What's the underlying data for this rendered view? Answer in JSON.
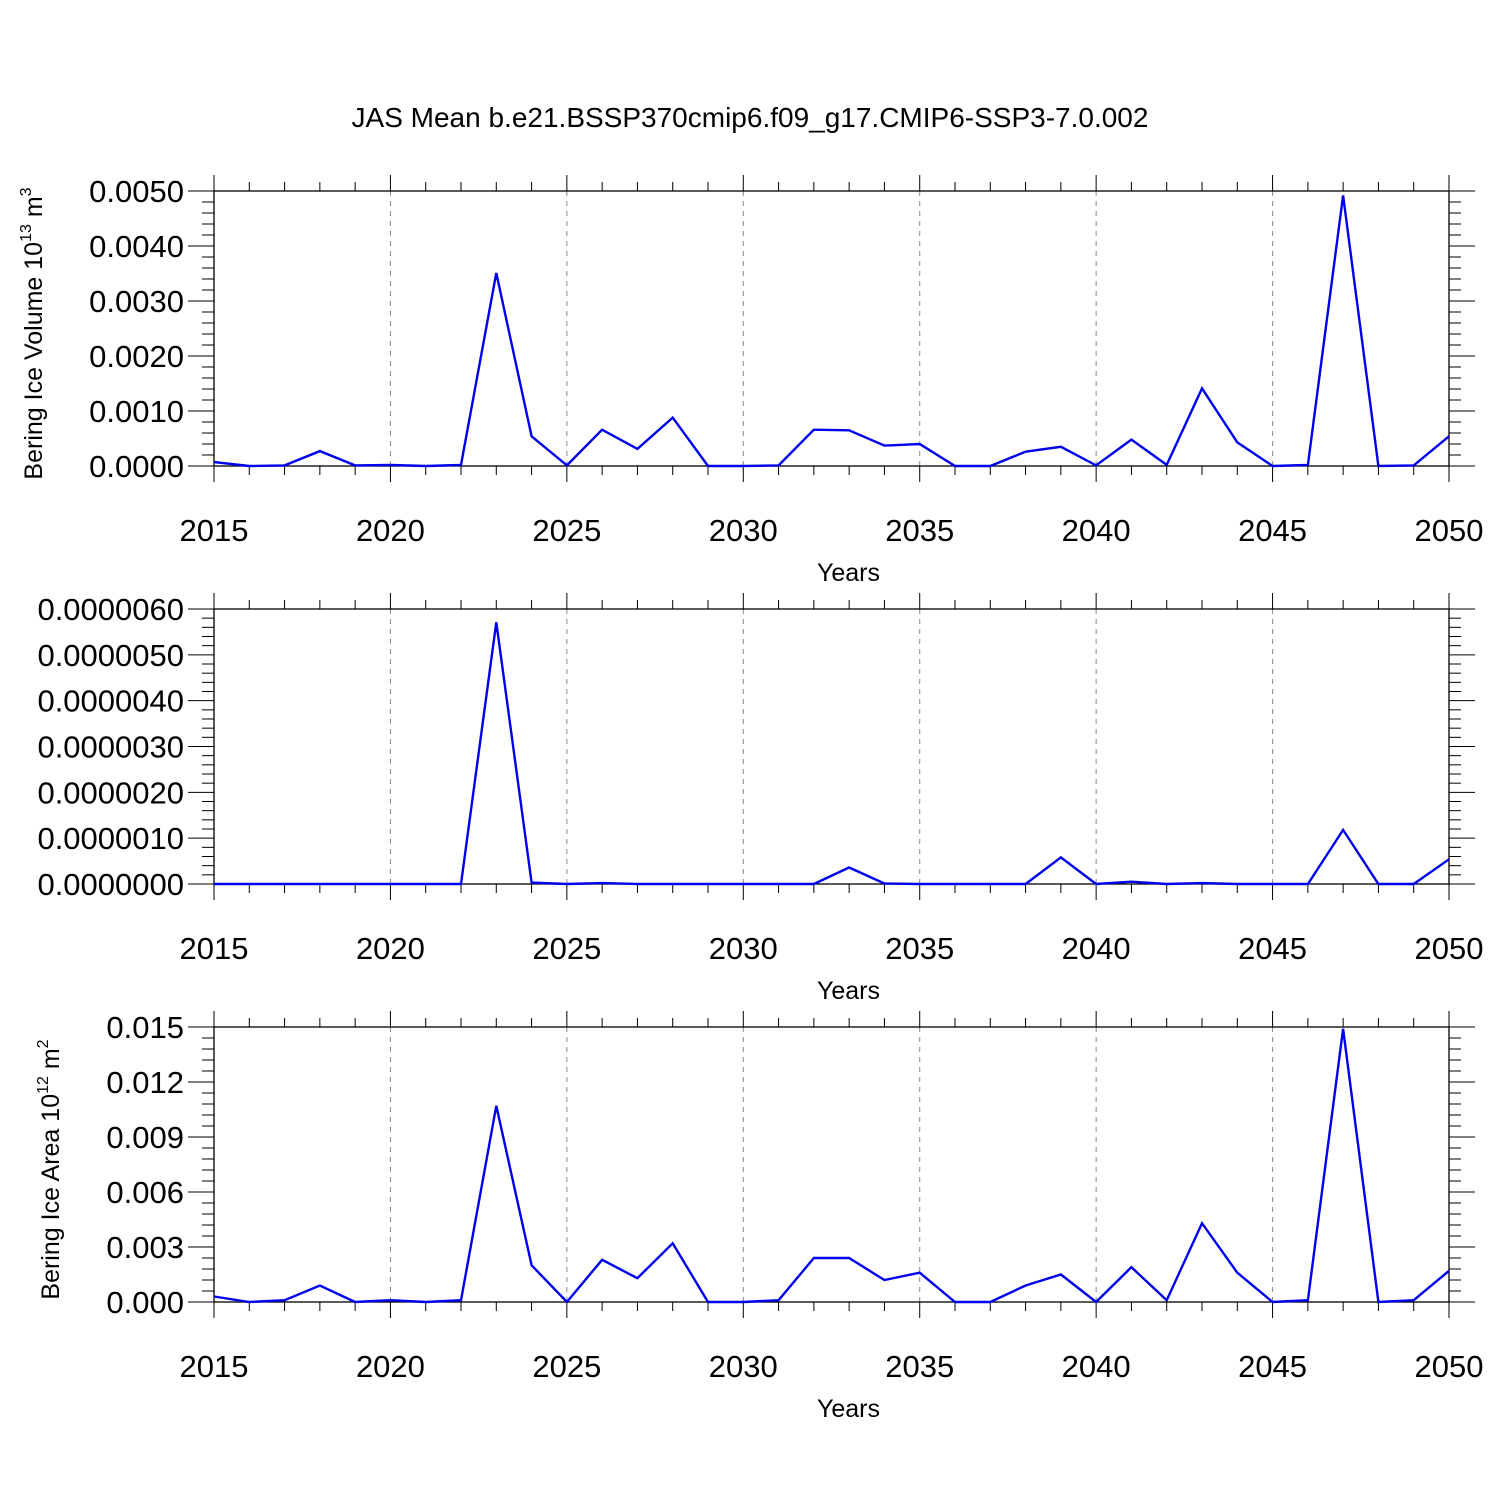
{
  "title": "JAS Mean b.e21.BSSP370cmip6.f09_g17.CMIP6-SSP3-7.0.002",
  "line_color": "#0000ee",
  "chart_data": [
    {
      "type": "line",
      "xlabel": "Years",
      "ylabel": {
        "pre": "Bering Ice Volume 10",
        "exp": "13",
        "post": " m",
        "post_exp": "3"
      },
      "xlim": [
        2015,
        2050
      ],
      "ylim": [
        0,
        0.005
      ],
      "yticks": [
        "0.0000",
        "0.0010",
        "0.0020",
        "0.0030",
        "0.0040",
        "0.0050"
      ],
      "xticks": [
        "2015",
        "2020",
        "2025",
        "2030",
        "2035",
        "2040",
        "2045",
        "2050"
      ],
      "grid": "vertical dashed at major x ticks",
      "series": [
        {
          "x": [
            2015,
            2016,
            2017,
            2018,
            2019,
            2020,
            2021,
            2022,
            2023,
            2024,
            2025,
            2026,
            2027,
            2028,
            2029,
            2030,
            2031,
            2032,
            2033,
            2034,
            2035,
            2036,
            2037,
            2038,
            2039,
            2040,
            2041,
            2042,
            2043,
            2044,
            2045,
            2046,
            2047,
            2048,
            2049,
            2050
          ],
          "values": [
            7e-05,
            0.0,
            1e-05,
            0.00027,
            1e-05,
            2e-05,
            0.0,
            2e-05,
            0.00351,
            0.00054,
            1e-05,
            0.00066,
            0.00031,
            0.00088,
            0.0,
            0.0,
            1e-05,
            0.00066,
            0.00065,
            0.00037,
            0.0004,
            0.0,
            0.0,
            0.00026,
            0.00035,
            1e-05,
            0.00048,
            2e-05,
            0.00141,
            0.00043,
            0.0,
            2e-05,
            0.00492,
            0.0,
            1e-05,
            0.00054
          ]
        }
      ]
    },
    {
      "type": "line",
      "xlabel": "Years",
      "ylabel": null,
      "xlim": [
        2015,
        2050
      ],
      "ylim": [
        0,
        6e-06
      ],
      "yticks": [
        "0.0000000",
        "0.0000010",
        "0.0000020",
        "0.0000030",
        "0.0000040",
        "0.0000050",
        "0.0000060"
      ],
      "xticks": [
        "2015",
        "2020",
        "2025",
        "2030",
        "2035",
        "2040",
        "2045",
        "2050"
      ],
      "grid": "vertical dashed at major x ticks",
      "series": [
        {
          "x": [
            2015,
            2016,
            2017,
            2018,
            2019,
            2020,
            2021,
            2022,
            2023,
            2024,
            2025,
            2026,
            2027,
            2028,
            2029,
            2030,
            2031,
            2032,
            2033,
            2034,
            2035,
            2036,
            2037,
            2038,
            2039,
            2040,
            2041,
            2042,
            2043,
            2044,
            2045,
            2046,
            2047,
            2048,
            2049,
            2050
          ],
          "values": [
            0.0,
            0.0,
            0.0,
            0.0,
            0.0,
            0.0,
            0.0,
            0.0,
            5.71e-06,
            3e-08,
            0.0,
            2e-08,
            0.0,
            0.0,
            0.0,
            0.0,
            0.0,
            0.0,
            3.6e-07,
            1e-08,
            0.0,
            0.0,
            0.0,
            0.0,
            5.8e-07,
            0.0,
            5e-08,
            0.0,
            2e-08,
            0.0,
            0.0,
            0.0,
            1.18e-06,
            0.0,
            0.0,
            5.4e-07
          ]
        }
      ]
    },
    {
      "type": "line",
      "xlabel": "Years",
      "ylabel": {
        "pre": "Bering Ice Area 10",
        "exp": "12",
        "post": " m",
        "post_exp": "2"
      },
      "xlim": [
        2015,
        2050
      ],
      "ylim": [
        0,
        0.015
      ],
      "yticks": [
        "0.000",
        "0.003",
        "0.006",
        "0.009",
        "0.012",
        "0.015"
      ],
      "xticks": [
        "2015",
        "2020",
        "2025",
        "2030",
        "2035",
        "2040",
        "2045",
        "2050"
      ],
      "grid": "vertical dashed at major x ticks",
      "series": [
        {
          "x": [
            2015,
            2016,
            2017,
            2018,
            2019,
            2020,
            2021,
            2022,
            2023,
            2024,
            2025,
            2026,
            2027,
            2028,
            2029,
            2030,
            2031,
            2032,
            2033,
            2034,
            2035,
            2036,
            2037,
            2038,
            2039,
            2040,
            2041,
            2042,
            2043,
            2044,
            2045,
            2046,
            2047,
            2048,
            2049,
            2050
          ],
          "values": [
            0.0003,
            0.0,
            0.0001,
            0.0009,
            0.0,
            0.0001,
            0.0,
            0.0001,
            0.0107,
            0.002,
            0.0,
            0.0023,
            0.0013,
            0.0032,
            0.0,
            0.0,
            0.0001,
            0.0024,
            0.0024,
            0.0012,
            0.0016,
            0.0,
            0.0,
            0.0009,
            0.0015,
            0.0,
            0.0019,
            0.0001,
            0.0043,
            0.0016,
            0.0,
            0.0001,
            0.0149,
            0.0,
            0.0001,
            0.0017
          ]
        }
      ]
    }
  ]
}
